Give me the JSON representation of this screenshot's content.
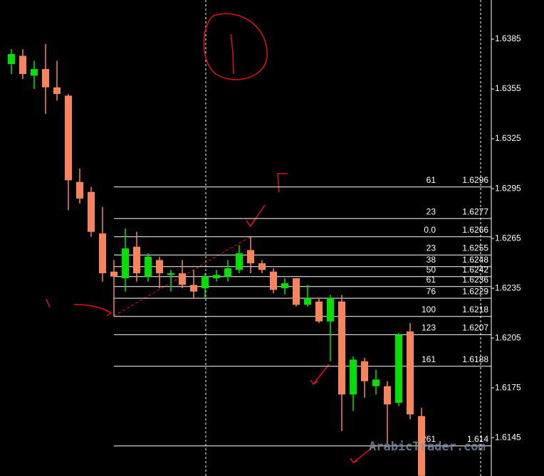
{
  "chart_data": {
    "type": "candlestick",
    "up_color": "#00e000",
    "down_color": "#f8845c",
    "open": [
      1.637,
      1.6375,
      1.6363,
      1.6367,
      1.6356,
      1.6351,
      1.6299,
      1.6293,
      1.6268,
      1.6245,
      1.6241,
      1.626,
      1.6242,
      1.6252,
      1.6243,
      1.6244,
      1.6237,
      1.6235,
      1.6241,
      1.6242,
      1.6246,
      1.6258,
      1.625,
      1.6245,
      1.6235,
      1.6241,
      1.6225,
      1.6227,
      1.6215,
      1.6227,
      1.6171,
      1.6191,
      1.6176,
      1.6176,
      1.6166,
      1.6209,
      1.6158
    ],
    "high": [
      1.6379,
      1.6379,
      1.6372,
      1.6382,
      1.6372,
      1.6352,
      1.6307,
      1.6296,
      1.6284,
      1.6252,
      1.6271,
      1.6269,
      1.6256,
      1.6254,
      1.6246,
      1.6252,
      1.6246,
      1.6244,
      1.6246,
      1.6252,
      1.6261,
      1.6266,
      1.6252,
      1.6247,
      1.6241,
      1.6241,
      1.6237,
      1.6229,
      1.6231,
      1.6231,
      1.6194,
      1.6193,
      1.6186,
      1.6179,
      1.6208,
      1.6214,
      1.6163
    ],
    "low": [
      1.6364,
      1.6361,
      1.6355,
      1.634,
      1.6348,
      1.6282,
      1.6286,
      1.6266,
      1.6239,
      1.6218,
      1.6233,
      1.6239,
      1.6239,
      1.6235,
      1.6233,
      1.6235,
      1.6229,
      1.6229,
      1.6239,
      1.6239,
      1.6244,
      1.6244,
      1.6244,
      1.6232,
      1.6231,
      1.6224,
      1.6224,
      1.6214,
      1.6191,
      1.6149,
      1.6161,
      1.6169,
      1.6171,
      1.6141,
      1.6164,
      1.6156,
      1.6122
    ],
    "close": [
      1.6376,
      1.6364,
      1.6367,
      1.6356,
      1.6352,
      1.63,
      1.6289,
      1.6269,
      1.6244,
      1.6242,
      1.6259,
      1.6244,
      1.6254,
      1.6244,
      1.6244,
      1.6237,
      1.6233,
      1.6242,
      1.6243,
      1.6247,
      1.6256,
      1.625,
      1.6246,
      1.6234,
      1.6238,
      1.6225,
      1.6229,
      1.6215,
      1.6229,
      1.6171,
      1.6192,
      1.6179,
      1.618,
      1.6165,
      1.6207,
      1.6159,
      1.6122
    ],
    "ylim": [
      1.61219,
      1.64086
    ],
    "yticks": [
      1.6385,
      1.6355,
      1.6325,
      1.6295,
      1.6265,
      1.6235,
      1.6205,
      1.6175,
      1.6145
    ],
    "fib_levels": [
      {
        "label": "61",
        "price": 1.6296
      },
      {
        "label": "23",
        "price": 1.6277
      },
      {
        "label": "0.0",
        "price": 1.6266
      },
      {
        "label": "23",
        "price": 1.6255
      },
      {
        "label": "38",
        "price": 1.6248
      },
      {
        "label": "50",
        "price": 1.6242
      },
      {
        "label": "61",
        "price": 1.6236
      },
      {
        "label": "76",
        "price": 1.6229
      },
      {
        "label": "100",
        "price": 1.6218
      },
      {
        "label": "123",
        "price": 1.6207
      },
      {
        "label": "161",
        "price": 1.6188
      },
      {
        "label": "261",
        "price": 1.614
      }
    ],
    "watermark": "ArabicTrader.com"
  }
}
